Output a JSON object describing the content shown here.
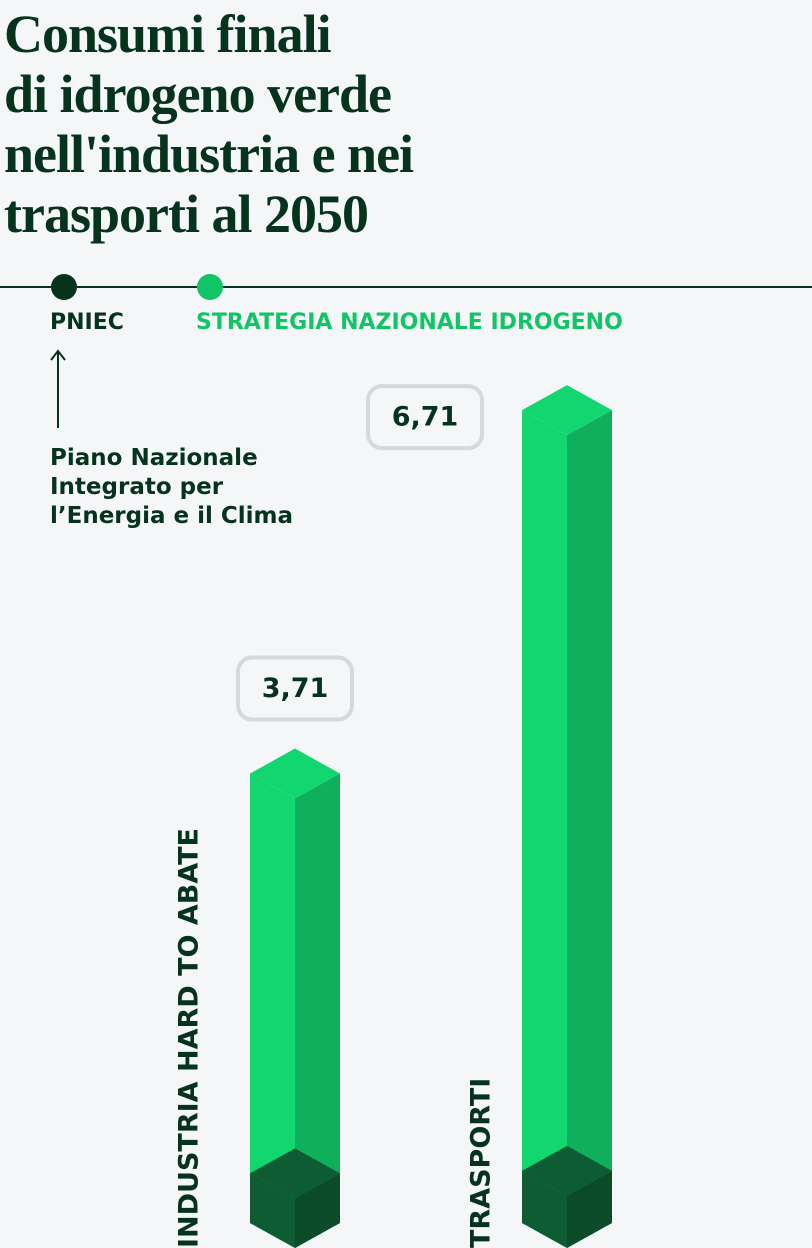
{
  "chart_data": {
    "type": "bar",
    "title": "Consumi finali\ndi idrogeno verde\nnell'industria e nei\ntrasporti al 2050",
    "annotation": "Piano Nazionale\nIntegrato per\nl’Energia e il Clima",
    "categories": [
      "INDUSTRIA HARD TO ABATE",
      "TRASPORTI"
    ],
    "series": [
      {
        "name": "STRATEGIA NAZIONALE IDROGENO",
        "color": "#12d66f",
        "values": [
          3.71,
          6.71
        ],
        "value_labels": [
          "3,71",
          "6,71"
        ]
      },
      {
        "name": "PNIEC",
        "color": "#0d5c33",
        "values": [
          0.41,
          0.43
        ]
      }
    ],
    "ylim": [
      0,
      7
    ]
  }
}
